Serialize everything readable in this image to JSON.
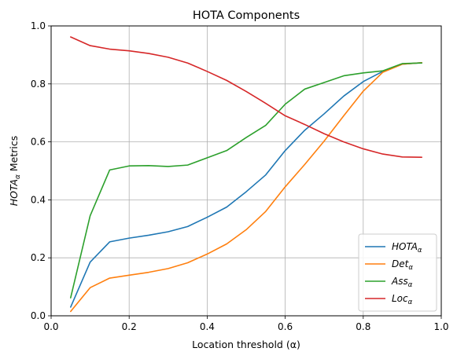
{
  "chart_data": {
    "type": "line",
    "title": "HOTA Components",
    "xlabel": "Location threshold (α)",
    "ylabel": "HOTA",
    "ylabel_sub": "α",
    "ylabel_suffix": " Metrics",
    "xlim": [
      0.0,
      1.0
    ],
    "ylim": [
      0.0,
      1.0
    ],
    "xticks": [
      "0.0",
      "0.2",
      "0.4",
      "0.6",
      "0.8",
      "1.0"
    ],
    "yticks": [
      "0.0",
      "0.2",
      "0.4",
      "0.6",
      "0.8",
      "1.0"
    ],
    "grid": true,
    "legend_position": "lower-right",
    "x": [
      0.05,
      0.1,
      0.15,
      0.2,
      0.25,
      0.3,
      0.35,
      0.4,
      0.45,
      0.5,
      0.55,
      0.6,
      0.65,
      0.7,
      0.75,
      0.8,
      0.85,
      0.9,
      0.95
    ],
    "series": [
      {
        "name": "HOTA",
        "name_sub": "α",
        "color": "#1f77b4",
        "values": [
          0.03,
          0.185,
          0.255,
          0.268,
          0.278,
          0.29,
          0.308,
          0.34,
          0.375,
          0.428,
          0.486,
          0.57,
          0.64,
          0.697,
          0.758,
          0.808,
          0.843,
          0.868,
          0.873
        ]
      },
      {
        "name": "Det",
        "name_sub": "α",
        "color": "#ff7f0e",
        "values": [
          0.015,
          0.097,
          0.13,
          0.14,
          0.15,
          0.163,
          0.183,
          0.213,
          0.248,
          0.297,
          0.36,
          0.445,
          0.522,
          0.603,
          0.69,
          0.775,
          0.84,
          0.868,
          0.873
        ]
      },
      {
        "name": "Ass",
        "name_sub": "α",
        "color": "#2ca02c",
        "values": [
          0.062,
          0.345,
          0.503,
          0.517,
          0.518,
          0.515,
          0.52,
          0.545,
          0.57,
          0.615,
          0.657,
          0.73,
          0.782,
          0.805,
          0.828,
          0.838,
          0.845,
          0.87,
          0.872
        ]
      },
      {
        "name": "Loc",
        "name_sub": "α",
        "color": "#d62728",
        "values": [
          0.962,
          0.932,
          0.92,
          0.914,
          0.905,
          0.892,
          0.872,
          0.843,
          0.812,
          0.774,
          0.733,
          0.69,
          0.66,
          0.628,
          0.6,
          0.576,
          0.558,
          0.548,
          0.547
        ]
      }
    ]
  }
}
